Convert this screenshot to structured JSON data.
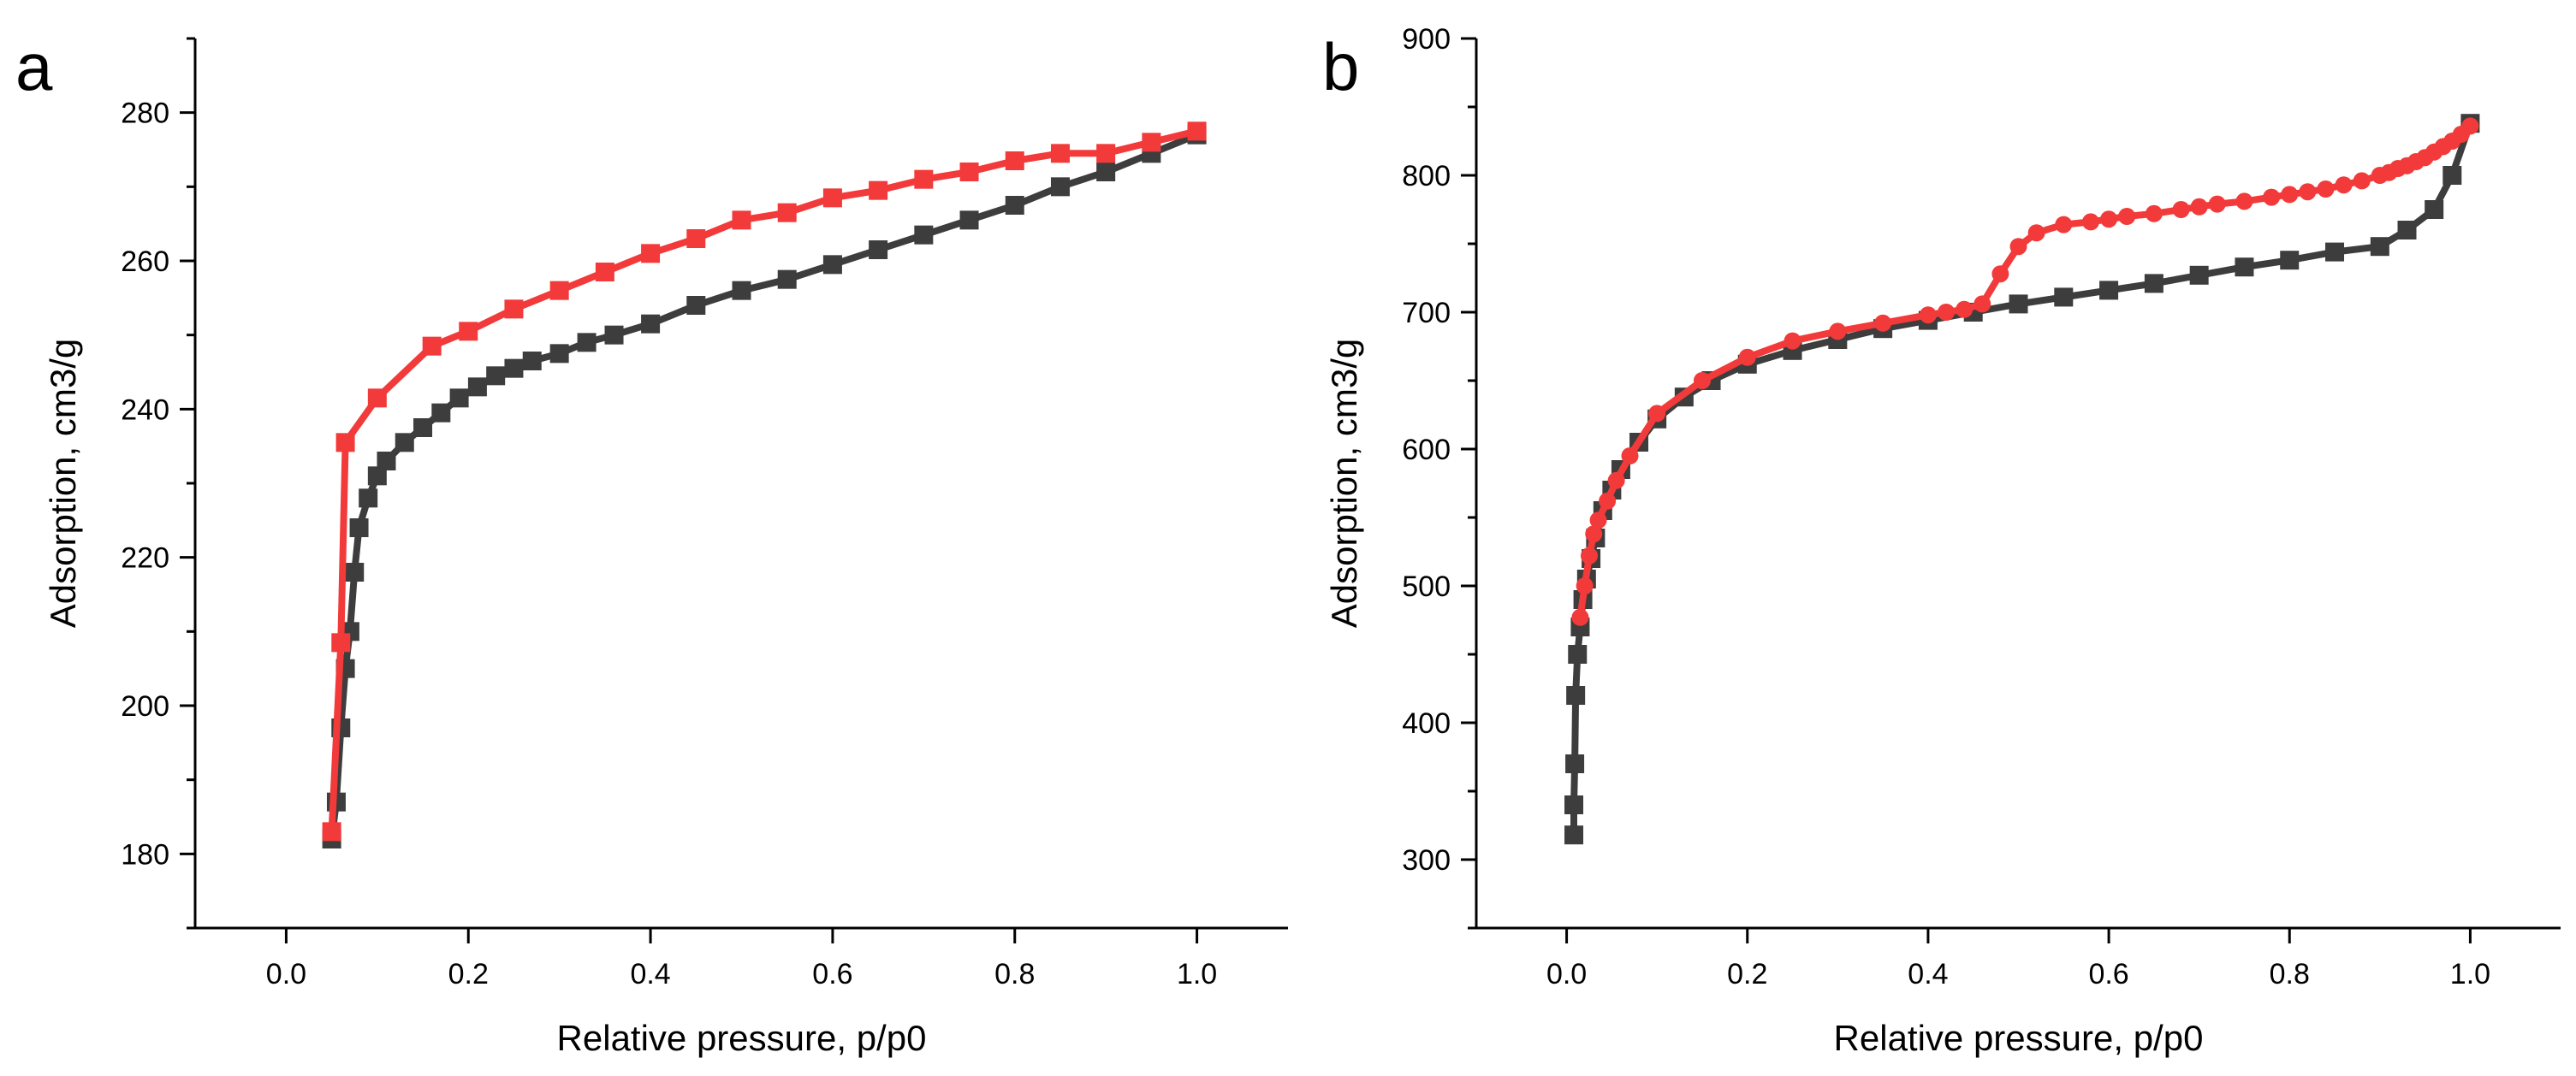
{
  "figure": {
    "background": "#ffffff"
  },
  "chart_data": [
    {
      "type": "scatter",
      "panel_label": "a",
      "xlabel": "Relative pressure, p/p0",
      "ylabel": "Adsorption, cm3/g",
      "xlim": [
        -0.1,
        1.1
      ],
      "ylim": [
        170,
        290
      ],
      "xticks": [
        0.0,
        0.2,
        0.4,
        0.6,
        0.8,
        1.0
      ],
      "xtick_labels": [
        "0.0",
        "0.2",
        "0.4",
        "0.6",
        "0.8",
        "1.0"
      ],
      "yticks": [
        180,
        200,
        220,
        240,
        260,
        280
      ],
      "ytick_labels": [
        "180",
        "200",
        "220",
        "240",
        "260",
        "280"
      ],
      "grid": false,
      "series": [
        {
          "role": "adsorption",
          "color": "#3d3d3d",
          "marker": "square",
          "x": [
            0.05,
            0.055,
            0.06,
            0.065,
            0.07,
            0.075,
            0.08,
            0.09,
            0.1,
            0.11,
            0.13,
            0.15,
            0.17,
            0.19,
            0.21,
            0.23,
            0.25,
            0.27,
            0.3,
            0.33,
            0.36,
            0.4,
            0.45,
            0.5,
            0.55,
            0.6,
            0.65,
            0.7,
            0.75,
            0.8,
            0.85,
            0.9,
            0.95,
            1.0
          ],
          "y": [
            182,
            187,
            197,
            205,
            210,
            218,
            224,
            228,
            231,
            233,
            235.5,
            237.5,
            239.5,
            241.5,
            243,
            244.5,
            245.5,
            246.5,
            247.5,
            249,
            250,
            251.5,
            254,
            256,
            257.5,
            259.5,
            261.5,
            263.5,
            265.5,
            267.5,
            270,
            272,
            274.5,
            277
          ]
        },
        {
          "role": "desorption",
          "color": "#f23a3a",
          "marker": "square",
          "x": [
            1.0,
            0.95,
            0.9,
            0.85,
            0.8,
            0.75,
            0.7,
            0.65,
            0.6,
            0.55,
            0.5,
            0.45,
            0.4,
            0.35,
            0.3,
            0.25,
            0.2,
            0.16,
            0.1,
            0.065,
            0.06,
            0.05
          ],
          "y": [
            277.5,
            276,
            274.5,
            274.5,
            273.5,
            272,
            271,
            269.5,
            268.5,
            266.5,
            265.5,
            263,
            261,
            258.5,
            256,
            253.5,
            250.5,
            248.5,
            241.5,
            235.5,
            208.5,
            183
          ]
        }
      ]
    },
    {
      "type": "scatter",
      "panel_label": "b",
      "xlabel": "Relative pressure, p/p0",
      "ylabel": "Adsorption, cm3/g",
      "xlim": [
        -0.1,
        1.1
      ],
      "ylim": [
        250,
        900
      ],
      "xticks": [
        0.0,
        0.2,
        0.4,
        0.6,
        0.8,
        1.0
      ],
      "xtick_labels": [
        "0.0",
        "0.2",
        "0.4",
        "0.6",
        "0.8",
        "1.0"
      ],
      "yticks": [
        300,
        400,
        500,
        600,
        700,
        800,
        900
      ],
      "ytick_labels": [
        "300",
        "400",
        "500",
        "600",
        "700",
        "800",
        "900"
      ],
      "grid": false,
      "series": [
        {
          "role": "adsorption",
          "color": "#3d3d3d",
          "marker": "square",
          "x": [
            0.008,
            0.008,
            0.009,
            0.01,
            0.012,
            0.015,
            0.018,
            0.022,
            0.027,
            0.032,
            0.04,
            0.05,
            0.06,
            0.08,
            0.1,
            0.13,
            0.16,
            0.2,
            0.25,
            0.3,
            0.35,
            0.4,
            0.45,
            0.5,
            0.55,
            0.6,
            0.65,
            0.7,
            0.75,
            0.8,
            0.85,
            0.9,
            0.93,
            0.96,
            0.98,
            1.0
          ],
          "y": [
            318,
            340,
            370,
            420,
            450,
            470,
            490,
            505,
            520,
            535,
            555,
            570,
            585,
            605,
            622,
            638,
            650,
            662,
            672,
            680,
            688,
            694,
            700,
            706,
            711,
            716,
            721,
            727,
            733,
            738,
            744,
            748,
            760,
            775,
            800,
            838
          ]
        },
        {
          "role": "desorption",
          "color": "#f23a3a",
          "marker": "circle",
          "x": [
            1.0,
            0.99,
            0.98,
            0.97,
            0.96,
            0.95,
            0.94,
            0.93,
            0.92,
            0.91,
            0.9,
            0.88,
            0.86,
            0.84,
            0.82,
            0.8,
            0.78,
            0.75,
            0.72,
            0.7,
            0.68,
            0.65,
            0.62,
            0.6,
            0.58,
            0.55,
            0.52,
            0.5,
            0.48,
            0.46,
            0.44,
            0.42,
            0.4,
            0.35,
            0.3,
            0.25,
            0.2,
            0.15,
            0.1,
            0.07,
            0.055,
            0.045,
            0.035,
            0.03,
            0.025,
            0.02,
            0.015
          ],
          "y": [
            836,
            830,
            825,
            821,
            817,
            813,
            810,
            807,
            805,
            802,
            800,
            796,
            793,
            790,
            788,
            786,
            784,
            781,
            779,
            777,
            775,
            772,
            770,
            768,
            766,
            764,
            758,
            748,
            728,
            706,
            702,
            700,
            698,
            692,
            686,
            679,
            667,
            650,
            626,
            595,
            577,
            562,
            548,
            538,
            522,
            500,
            477
          ]
        }
      ]
    }
  ]
}
